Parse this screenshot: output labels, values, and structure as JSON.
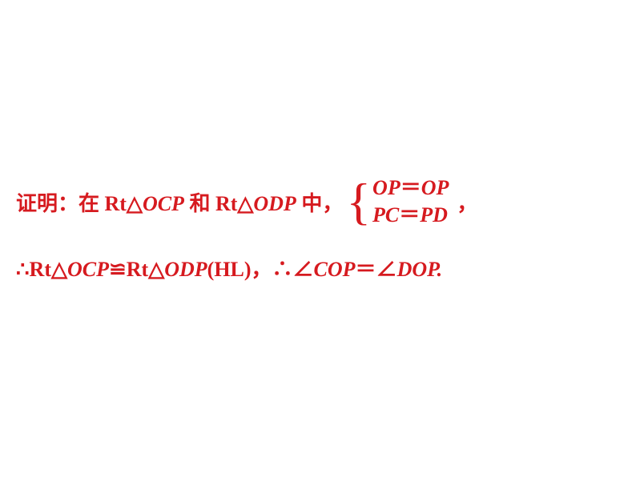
{
  "color": "#d61a1f",
  "line1": {
    "prefix": "证明：在 Rt△",
    "t1": "OCP",
    "mid1": " 和 Rt△",
    "t2": "ODP",
    "mid2": " 中，",
    "eq1a": "OP",
    "eq": "＝",
    "eq1b": "OP",
    "eq2a": "PC",
    "eq2b": "PD",
    "trail": "，"
  },
  "line2": {
    "p1": "∴Rt△",
    "t1": "OCP",
    "cong": "≌",
    "p2": "Rt△",
    "t2": "ODP",
    "hl": "(HL)，∴∠",
    "a1": "COP",
    "eq": "＝",
    "a2sym": "∠",
    "a2": "DOP",
    "end": "."
  }
}
